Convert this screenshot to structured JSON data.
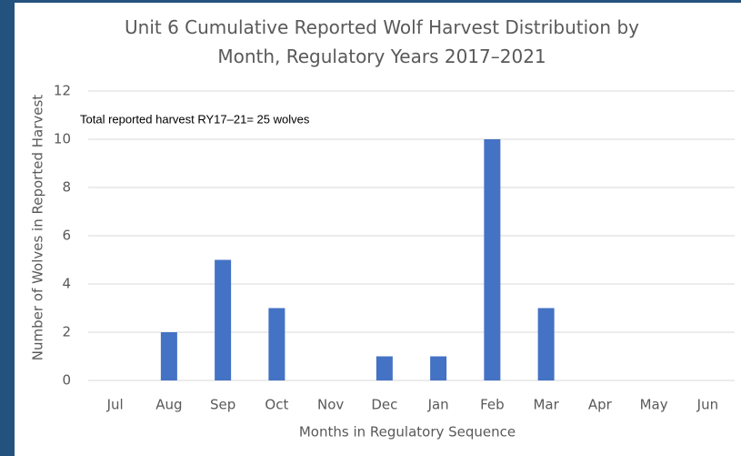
{
  "chart_data": {
    "type": "bar",
    "title": "Unit 6 Cumulative Reported Wolf Harvest Distribution by Month, Regulatory Years 2017–2021",
    "annotation": "Total reported harvest RY17–21= 25 wolves",
    "x_label": "Months in Regulatory Sequence",
    "y_label": "Number of Wolves in Reported Harvest",
    "categories": [
      "Jul",
      "Aug",
      "Sep",
      "Oct",
      "Nov",
      "Dec",
      "Jan",
      "Feb",
      "Mar",
      "Apr",
      "May",
      "Jun"
    ],
    "values": [
      0,
      2,
      5,
      3,
      0,
      1,
      1,
      10,
      3,
      0,
      0,
      0
    ],
    "color": "#4472c4",
    "ylim": [
      0,
      12
    ],
    "yticks": [
      0,
      2,
      4,
      6,
      8,
      10,
      12
    ],
    "grid": true
  }
}
